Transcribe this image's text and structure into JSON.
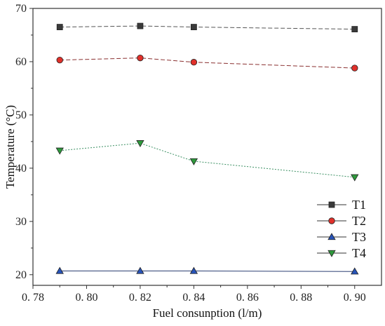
{
  "chart_data": {
    "type": "line",
    "xlabel": "Fuel consunption (l/m)",
    "ylabel": "Temperature (°C)",
    "xlim": [
      0.78,
      0.91
    ],
    "ylim": [
      18,
      70
    ],
    "xticks": [
      0.78,
      0.8,
      0.82,
      0.84,
      0.86,
      0.88,
      0.9
    ],
    "xtick_labels": [
      "0. 78",
      "0. 80",
      "0. 82",
      "0. 84",
      "0. 86",
      "0. 88",
      "0. 90"
    ],
    "yticks": [
      20,
      30,
      40,
      50,
      60,
      70
    ],
    "ytick_labels": [
      "20",
      "30",
      "40",
      "50",
      "60",
      "70"
    ],
    "grid": false,
    "legend_position": "bottom-right",
    "series": [
      {
        "name": "T1",
        "marker": "square",
        "color": "#3a3a3a",
        "line_color": "#555555",
        "x": [
          0.79,
          0.82,
          0.84,
          0.9
        ],
        "y": [
          66.5,
          66.7,
          66.5,
          66.1
        ]
      },
      {
        "name": "T2",
        "marker": "circle",
        "color": "#e0302a",
        "line_color": "#8a3030",
        "x": [
          0.79,
          0.82,
          0.84,
          0.9
        ],
        "y": [
          60.3,
          60.7,
          59.9,
          58.8
        ]
      },
      {
        "name": "T3",
        "marker": "triangle-up",
        "color": "#2753b8",
        "line_color": "#2c3f73",
        "x": [
          0.79,
          0.82,
          0.84,
          0.9
        ],
        "y": [
          20.7,
          20.7,
          20.7,
          20.6
        ]
      },
      {
        "name": "T4",
        "marker": "triangle-down",
        "color": "#2e9a3c",
        "line_color": "#3a8f62",
        "x": [
          0.79,
          0.82,
          0.84,
          0.9
        ],
        "y": [
          43.3,
          44.7,
          41.3,
          38.3
        ]
      }
    ]
  }
}
